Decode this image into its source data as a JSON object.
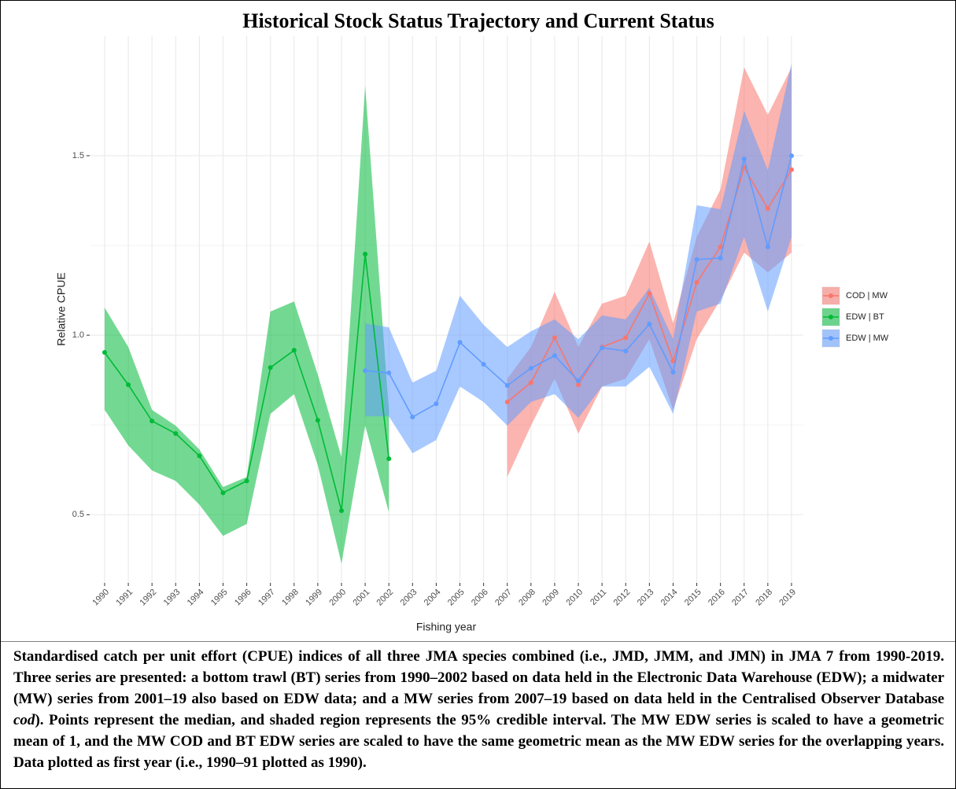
{
  "chart_data": {
    "type": "ribbon-line",
    "title": "Historical Stock Status Trajectory and Current Status",
    "x_label": "Fishing year",
    "y_label": "Relative CPUE",
    "xlim": [
      1989.37,
      2019.5
    ],
    "xticks": [
      1990,
      1991,
      1992,
      1993,
      1994,
      1995,
      1996,
      1997,
      1998,
      1999,
      2000,
      2001,
      2002,
      2003,
      2004,
      2005,
      2006,
      2007,
      2008,
      2009,
      2010,
      2011,
      2012,
      2013,
      2014,
      2015,
      2016,
      2017,
      2018,
      2019
    ],
    "ylim": [
      0.31,
      1.833
    ],
    "yticks": [
      0.5,
      {
        "value": 1,
        "label": "1.0"
      },
      1.5
    ],
    "grid": true,
    "legend": "right",
    "series": [
      {
        "name": "COD | MW",
        "color": "#F8766D",
        "x": [
          2007,
          2008,
          2009,
          2010,
          2011,
          2012,
          2013,
          2014,
          2015,
          2016,
          2017,
          2018,
          2019
        ],
        "values": [
          0.814,
          0.868,
          0.993,
          0.862,
          0.967,
          0.993,
          1.116,
          0.928,
          1.147,
          1.246,
          1.467,
          1.353,
          1.461
        ],
        "upper": [
          0.879,
          0.967,
          1.121,
          0.967,
          1.088,
          1.11,
          1.261,
          1.033,
          1.274,
          1.406,
          1.746,
          1.614,
          1.746
        ],
        "lower": [
          0.605,
          0.748,
          0.879,
          0.726,
          0.857,
          0.879,
          0.989,
          0.792,
          0.989,
          1.099,
          1.23,
          1.175,
          1.23
        ]
      },
      {
        "name": "EDW | BT",
        "color": "#00BA38",
        "x": [
          1990,
          1991,
          1992,
          1993,
          1994,
          1995,
          1996,
          1997,
          1998,
          1999,
          2000,
          2001,
          2002
        ],
        "values": [
          0.952,
          0.862,
          0.761,
          0.726,
          0.664,
          0.561,
          0.594,
          0.91,
          0.958,
          0.763,
          0.511,
          1.226,
          0.656
        ],
        "upper": [
          1.077,
          0.967,
          0.792,
          0.748,
          0.682,
          0.577,
          0.605,
          1.066,
          1.094,
          0.89,
          0.66,
          1.695,
          0.792
        ],
        "lower": [
          0.792,
          0.693,
          0.623,
          0.594,
          0.528,
          0.441,
          0.474,
          0.781,
          0.836,
          0.638,
          0.364,
          0.748,
          0.507
        ]
      },
      {
        "name": "EDW | MW",
        "color": "#619CFF",
        "x": [
          2001,
          2002,
          2003,
          2004,
          2005,
          2006,
          2007,
          2008,
          2009,
          2010,
          2011,
          2012,
          2013,
          2014,
          2015,
          2016,
          2017,
          2018,
          2019
        ],
        "values": [
          0.901,
          0.895,
          0.772,
          0.809,
          0.98,
          0.919,
          0.86,
          0.908,
          0.943,
          0.873,
          0.965,
          0.956,
          1.031,
          0.897,
          1.211,
          1.215,
          1.491,
          1.246,
          1.5
        ],
        "upper": [
          1.033,
          1.022,
          0.868,
          0.901,
          1.11,
          1.029,
          0.967,
          1.011,
          1.044,
          0.989,
          1.055,
          1.044,
          1.132,
          0.989,
          1.362,
          1.351,
          1.625,
          1.46,
          1.757
        ],
        "lower": [
          0.774,
          0.774,
          0.671,
          0.708,
          0.857,
          0.814,
          0.748,
          0.814,
          0.836,
          0.77,
          0.857,
          0.857,
          0.912,
          0.781,
          1.066,
          1.088,
          1.274,
          1.066,
          1.274
        ]
      }
    ]
  },
  "caption": [
    "Standardised catch per unit effort (CPUE) indices of all three JMA species combined (i.e., JMD, JMM, and JMN) in JMA 7 from 1990-2019. Three series are presented: a bottom trawl (BT) series from 1990–2002 based on data held in the Electronic Data Warehouse (EDW); a midwater (MW) series from 2001–19 also based on EDW data; and a MW series from 2007–19 based on data held in the Centralised Observer Database ",
    "cod",
    "). Points represent the median, and shaded region represents the 95% credible interval. The MW EDW series is scaled to have a geometric mean of 1, and the MW COD and BT EDW series are scaled to have the same geometric mean as the MW EDW series for the overlapping years. Data plotted as first year (i.e., 1990–91 plotted as 1990)."
  ]
}
